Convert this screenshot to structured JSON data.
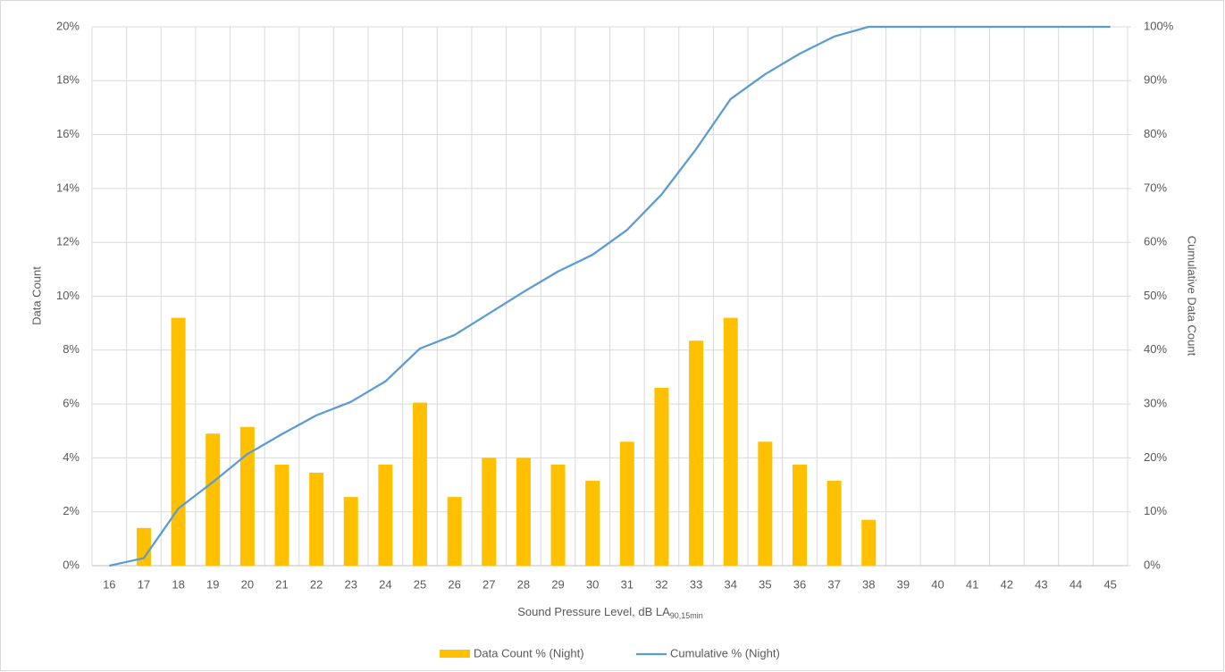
{
  "chart_data": {
    "type": "bar_line",
    "x_label": "Sound Pressure Level, dB LA",
    "x_label_subscript": "90,15min",
    "y_label": "Data Count",
    "y2_label": "Cumulative Data Count",
    "categories": [
      "16",
      "17",
      "18",
      "19",
      "20",
      "21",
      "22",
      "23",
      "24",
      "25",
      "26",
      "27",
      "28",
      "29",
      "30",
      "31",
      "32",
      "33",
      "34",
      "35",
      "36",
      "37",
      "38",
      "39",
      "40",
      "41",
      "42",
      "43",
      "44",
      "45"
    ],
    "series": [
      {
        "name": "Data Count % (Night)",
        "type": "bar",
        "color": "#ffc000",
        "values": [
          0,
          1.4,
          9.2,
          4.9,
          5.15,
          3.75,
          3.45,
          2.55,
          3.75,
          6.05,
          2.55,
          4.0,
          4.0,
          3.75,
          3.15,
          4.6,
          6.6,
          8.35,
          9.2,
          4.6,
          3.75,
          3.15,
          1.7,
          0,
          0,
          0,
          0,
          0,
          0,
          0
        ]
      },
      {
        "name": "Cumulative % (Night)",
        "type": "line",
        "axis": "y2",
        "color": "#5b9bd5",
        "values": [
          0,
          1.4,
          10.6,
          15.5,
          20.7,
          24.4,
          27.9,
          30.4,
          34.2,
          40.3,
          42.8,
          46.8,
          50.8,
          54.6,
          57.7,
          62.3,
          68.9,
          77.3,
          86.6,
          91.2,
          95.0,
          98.2,
          100,
          100,
          100,
          100,
          100,
          100,
          100,
          100
        ]
      }
    ],
    "ylim": [
      0,
      20
    ],
    "yticks": [
      {
        "value": 0,
        "label": "0%"
      },
      {
        "value": 2,
        "label": "2%"
      },
      {
        "value": 4,
        "label": "4%"
      },
      {
        "value": 6,
        "label": "6%"
      },
      {
        "value": 8,
        "label": "8%"
      },
      {
        "value": 10,
        "label": "10%"
      },
      {
        "value": 12,
        "label": "12%"
      },
      {
        "value": 14,
        "label": "14%"
      },
      {
        "value": 16,
        "label": "16%"
      },
      {
        "value": 18,
        "label": "18%"
      },
      {
        "value": 20,
        "label": "20%"
      }
    ],
    "y2lim": [
      0,
      100
    ],
    "y2ticks": [
      {
        "value": 0,
        "label": "0%"
      },
      {
        "value": 10,
        "label": "10%"
      },
      {
        "value": 20,
        "label": "20%"
      },
      {
        "value": 30,
        "label": "30%"
      },
      {
        "value": 40,
        "label": "40%"
      },
      {
        "value": 50,
        "label": "50%"
      },
      {
        "value": 60,
        "label": "60%"
      },
      {
        "value": 70,
        "label": "70%"
      },
      {
        "value": 80,
        "label": "80%"
      },
      {
        "value": 90,
        "label": "90%"
      },
      {
        "value": 100,
        "label": "100%"
      }
    ],
    "grid": true,
    "legend": "bottom"
  }
}
